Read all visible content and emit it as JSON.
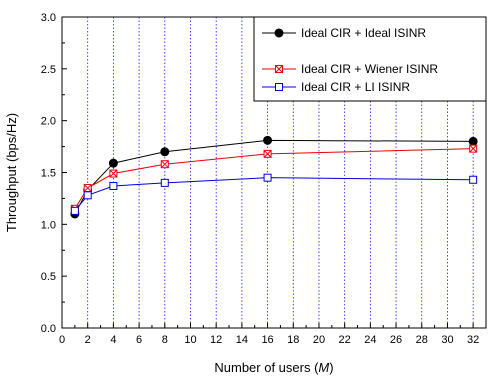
{
  "chart_data": {
    "type": "line",
    "title": "",
    "xlabel": "Number of users (M)",
    "xlabel_prefix": "Number of users (",
    "xlabel_var": "M",
    "xlabel_suffix": ")",
    "ylabel": "Throughput (bps/Hz)",
    "xlim": [
      0,
      33
    ],
    "ylim": [
      0.0,
      3.0
    ],
    "x_ticks": [
      0,
      2,
      4,
      6,
      8,
      10,
      12,
      14,
      16,
      18,
      20,
      22,
      24,
      26,
      28,
      30,
      32
    ],
    "y_ticks": [
      0.0,
      0.5,
      1.0,
      1.5,
      2.0,
      2.5,
      3.0
    ],
    "y_tick_labels": [
      "0.0",
      "0.5",
      "1.0",
      "1.5",
      "2.0",
      "2.5",
      "3.0"
    ],
    "grid": "dotted blue vertical lines at x ticks",
    "legend_position": "top-right",
    "x": [
      1,
      2,
      4,
      8,
      16,
      32
    ],
    "series": [
      {
        "name": "Ideal CIR + Ideal ISINR",
        "color": "#000000",
        "marker": "filled-circle",
        "values": [
          1.1,
          1.33,
          1.59,
          1.7,
          1.81,
          1.8
        ]
      },
      {
        "name": "Ideal CIR + Wiener ISINR",
        "color": "#e8000b",
        "marker": "crossed-square",
        "values": [
          1.15,
          1.35,
          1.49,
          1.58,
          1.68,
          1.73
        ]
      },
      {
        "name": "Ideal CIR + LI ISINR",
        "color": "#0000dd",
        "marker": "open-square",
        "values": [
          1.13,
          1.28,
          1.37,
          1.4,
          1.45,
          1.43
        ]
      }
    ]
  }
}
